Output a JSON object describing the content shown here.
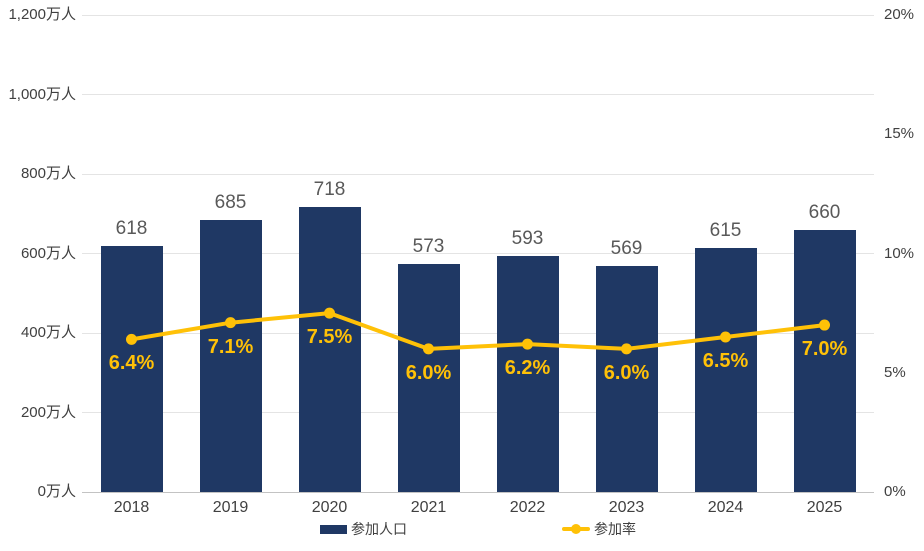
{
  "chart_data": {
    "type": "bar",
    "subtype": "combo-bar-line",
    "title": "",
    "categories": [
      "2018",
      "2019",
      "2020",
      "2021",
      "2022",
      "2023",
      "2024",
      "2025"
    ],
    "series": [
      {
        "name": "参加人口",
        "type": "bar",
        "axis": "left",
        "unit": "万人",
        "color": "#1f3864",
        "values": [
          618,
          685,
          718,
          573,
          593,
          569,
          615,
          660
        ],
        "data_labels": [
          "618",
          "685",
          "718",
          "573",
          "593",
          "569",
          "615",
          "660"
        ]
      },
      {
        "name": "参加率",
        "type": "line",
        "axis": "right",
        "unit": "%",
        "color": "#ffc107",
        "values": [
          6.4,
          7.1,
          7.5,
          6.0,
          6.2,
          6.0,
          6.5,
          7.0
        ],
        "data_labels": [
          "6.4%",
          "7.1%",
          "7.5%",
          "6.0%",
          "6.2%",
          "6.0%",
          "6.5%",
          "7.0%"
        ]
      }
    ],
    "left_axis": {
      "min": 0,
      "max": 1200,
      "step": 200,
      "tick_labels": [
        "0万人",
        "200万人",
        "400万人",
        "600万人",
        "800万人",
        "1,000万人",
        "1,200万人"
      ]
    },
    "right_axis": {
      "min": 0,
      "max": 20,
      "step": 5,
      "tick_labels": [
        "0%",
        "5%",
        "10%",
        "15%",
        "20%"
      ]
    },
    "grid": true,
    "legend_position": "bottom"
  },
  "colors": {
    "bar": "#1f3864",
    "line": "#ffc107",
    "bar_value_label": "#595959",
    "axis_label": "#404040",
    "gridline": "#e4e4e4",
    "baseline": "#c3c3c3",
    "background": "#ffffff"
  }
}
